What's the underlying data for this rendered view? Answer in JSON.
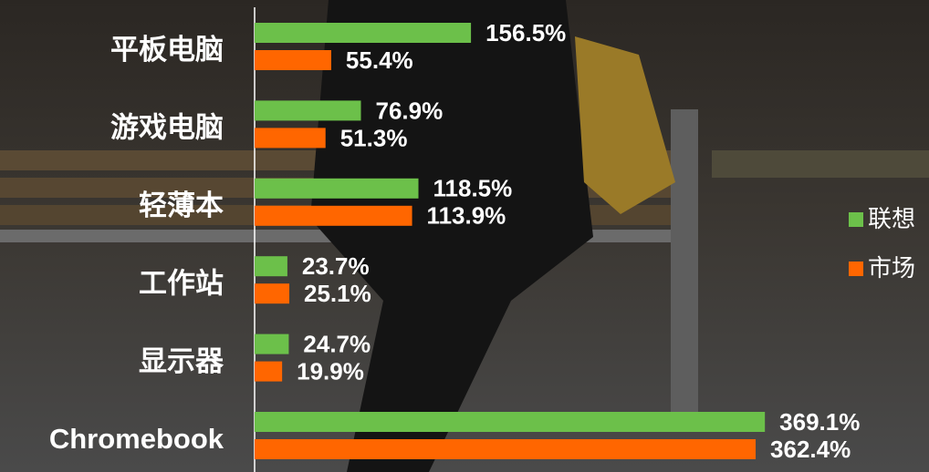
{
  "chart_data": {
    "type": "bar",
    "orientation": "horizontal",
    "categories": [
      "平板电脑",
      "游戏电脑",
      "轻薄本",
      "工作站",
      "显示器",
      "Chromebook"
    ],
    "series": [
      {
        "name": "联想",
        "color": "#6cc04a",
        "values": [
          156.5,
          76.9,
          118.5,
          23.7,
          24.7,
          369.1
        ],
        "value_labels": [
          "156.5%",
          "76.9%",
          "118.5%",
          "23.7%",
          "24.7%",
          "369.1%"
        ]
      },
      {
        "name": "市场",
        "color": "#ff6600",
        "values": [
          55.4,
          51.3,
          113.9,
          25.1,
          19.9,
          362.4
        ],
        "value_labels": [
          "55.4%",
          "51.3%",
          "113.9%",
          "25.1%",
          "19.9%",
          "362.4%"
        ]
      }
    ],
    "xlim": [
      0,
      400
    ],
    "legend": "right"
  }
}
